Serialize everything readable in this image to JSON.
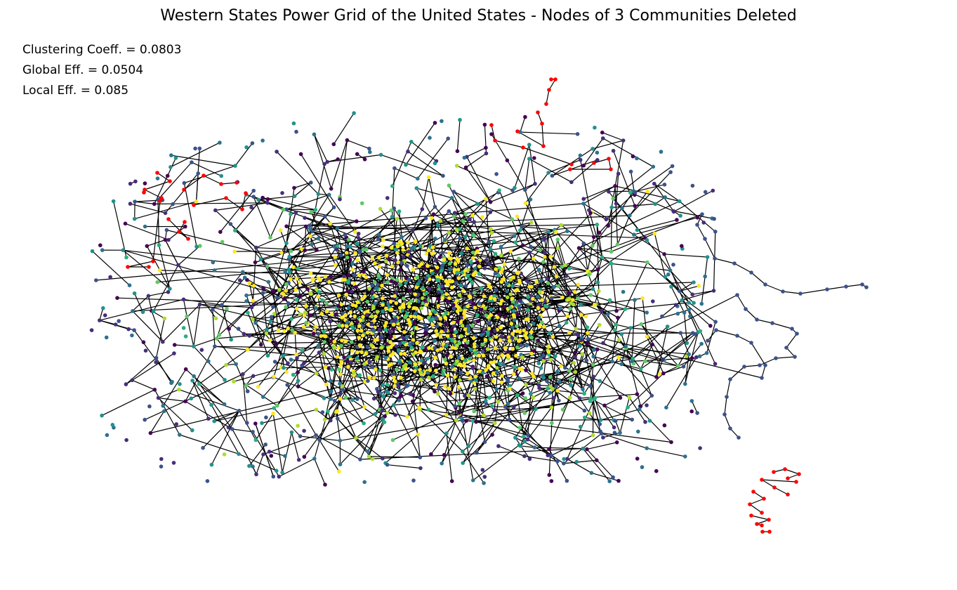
{
  "title": "Western States Power Grid of the United States - Nodes of 3 Communities Deleted",
  "metrics": {
    "clustering": "Clustering Coeff. = 0.0803",
    "global_eff": "Global Eff. = 0.0504",
    "local_eff": "Local Eff. = 0.085"
  },
  "colors": {
    "edge": "#000000",
    "deleted": "#ff0000",
    "communities": [
      "#440154",
      "#472d7b",
      "#3b528b",
      "#2c728e",
      "#21918c",
      "#28ae80",
      "#5ec962",
      "#addc30",
      "#fde725"
    ]
  },
  "legend_note": ""
}
